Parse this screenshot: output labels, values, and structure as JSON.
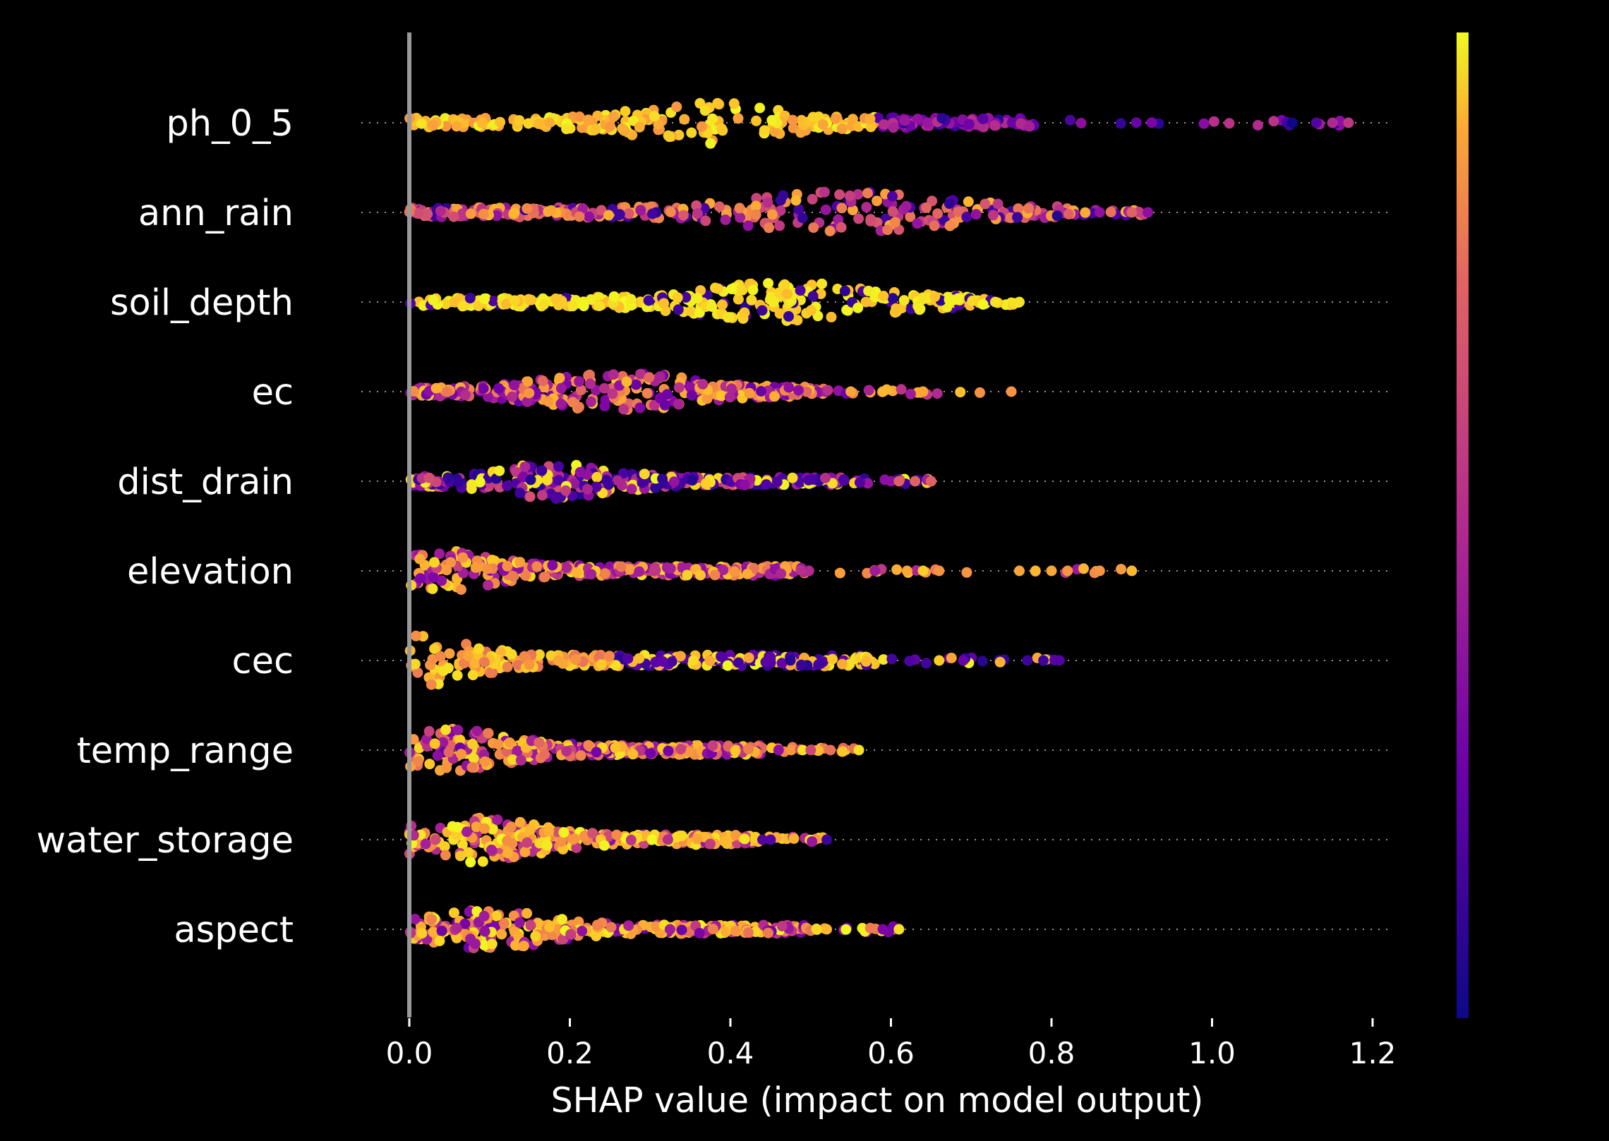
{
  "chart_data": {
    "type": "scatter",
    "subtype": "shap-beeswarm",
    "xlabel": "SHAP value (impact on model output)",
    "xlim": [
      -0.06,
      1.22
    ],
    "xticks": [
      "0.0",
      "0.2",
      "0.4",
      "0.6",
      "0.8",
      "1.0",
      "1.2"
    ],
    "xtick_values": [
      0,
      0.2,
      0.4,
      0.6,
      0.8,
      1.0,
      1.2
    ],
    "colorbar": {
      "colormap": "plasma",
      "low_color": "#0d0887",
      "high_color": "#f0f921"
    },
    "background": "#000000",
    "grid": "dotted horizontal lines per feature",
    "features": [
      {
        "name": "ph_0_5",
        "min": 0.0,
        "max": 1.17,
        "peak": 0.38,
        "colors": "orange/yellow at low SHAP, purple/blue at high SHAP",
        "outliers": [
          {
            "x": 1.1,
            "c": 0.0
          },
          {
            "x": 1.13,
            "c": 0.15
          },
          {
            "x": 1.15,
            "c": 0.4
          },
          {
            "x": 1.17,
            "c": 0.45
          }
        ]
      },
      {
        "name": "ann_rain",
        "min": 0.0,
        "max": 0.92,
        "peak": 0.55,
        "colors": "mixed purple/orange",
        "outliers": [
          {
            "x": 0.86,
            "c": 0.3
          },
          {
            "x": 0.9,
            "c": 0.6
          },
          {
            "x": 0.92,
            "c": 0.3
          }
        ]
      },
      {
        "name": "soil_depth",
        "min": 0.0,
        "max": 0.76,
        "peak": 0.47,
        "colors": "mostly yellow",
        "outliers": [
          {
            "x": 0.73,
            "c": 0.95
          },
          {
            "x": 0.76,
            "c": 0.95
          }
        ]
      },
      {
        "name": "ec",
        "min": 0.0,
        "max": 0.75,
        "peak": 0.26,
        "colors": "purple/orange",
        "outliers": [
          {
            "x": 0.55,
            "c": 0.8
          },
          {
            "x": 0.59,
            "c": 0.85
          },
          {
            "x": 0.64,
            "c": 0.8
          },
          {
            "x": 0.75,
            "c": 0.75
          }
        ]
      },
      {
        "name": "dist_drain",
        "min": 0.0,
        "max": 0.65,
        "peak": 0.18,
        "colors": "purple/blue with yellow",
        "outliers": [
          {
            "x": 0.6,
            "c": 0.3
          },
          {
            "x": 0.61,
            "c": 0.6
          },
          {
            "x": 0.63,
            "c": 0.6
          },
          {
            "x": 0.65,
            "c": 0.6
          }
        ]
      },
      {
        "name": "elevation",
        "min": 0.0,
        "max": 0.9,
        "peak": 0.03,
        "colors": "orange/purple",
        "outliers": [
          {
            "x": 0.58,
            "c": 0.35
          },
          {
            "x": 0.62,
            "c": 0.8
          },
          {
            "x": 0.64,
            "c": 0.9
          },
          {
            "x": 0.66,
            "c": 0.75
          },
          {
            "x": 0.76,
            "c": 0.8
          },
          {
            "x": 0.78,
            "c": 0.85
          },
          {
            "x": 0.8,
            "c": 0.8
          },
          {
            "x": 0.82,
            "c": 0.75
          },
          {
            "x": 0.86,
            "c": 0.75
          },
          {
            "x": 0.9,
            "c": 0.85
          }
        ]
      },
      {
        "name": "cec",
        "min": 0.0,
        "max": 0.81,
        "peak": 0.02,
        "colors": "orange at low SHAP, blue at high SHAP",
        "outliers": [
          {
            "x": 0.66,
            "c": 0.9
          },
          {
            "x": 0.69,
            "c": 0.2
          },
          {
            "x": 0.77,
            "c": 0.1
          },
          {
            "x": 0.79,
            "c": 0.1
          },
          {
            "x": 0.81,
            "c": 0.15
          }
        ]
      },
      {
        "name": "temp_range",
        "min": 0.0,
        "max": 0.56,
        "peak": 0.05,
        "colors": "orange/purple",
        "outliers": [
          {
            "x": 0.46,
            "c": 0.3
          },
          {
            "x": 0.49,
            "c": 0.95
          },
          {
            "x": 0.5,
            "c": 0.5
          },
          {
            "x": 0.56,
            "c": 0.95
          }
        ]
      },
      {
        "name": "water_storage",
        "min": 0.0,
        "max": 0.52,
        "peak": 0.08,
        "colors": "yellow/orange",
        "outliers": [
          {
            "x": 0.44,
            "c": 0.15
          },
          {
            "x": 0.45,
            "c": 0.15
          },
          {
            "x": 0.52,
            "c": 0.1
          }
        ]
      },
      {
        "name": "aspect",
        "min": 0.0,
        "max": 0.61,
        "peak": 0.1,
        "colors": "orange/purple",
        "outliers": [
          {
            "x": 0.52,
            "c": 0.85
          },
          {
            "x": 0.59,
            "c": 0.25
          },
          {
            "x": 0.61,
            "c": 0.95
          }
        ]
      }
    ]
  }
}
